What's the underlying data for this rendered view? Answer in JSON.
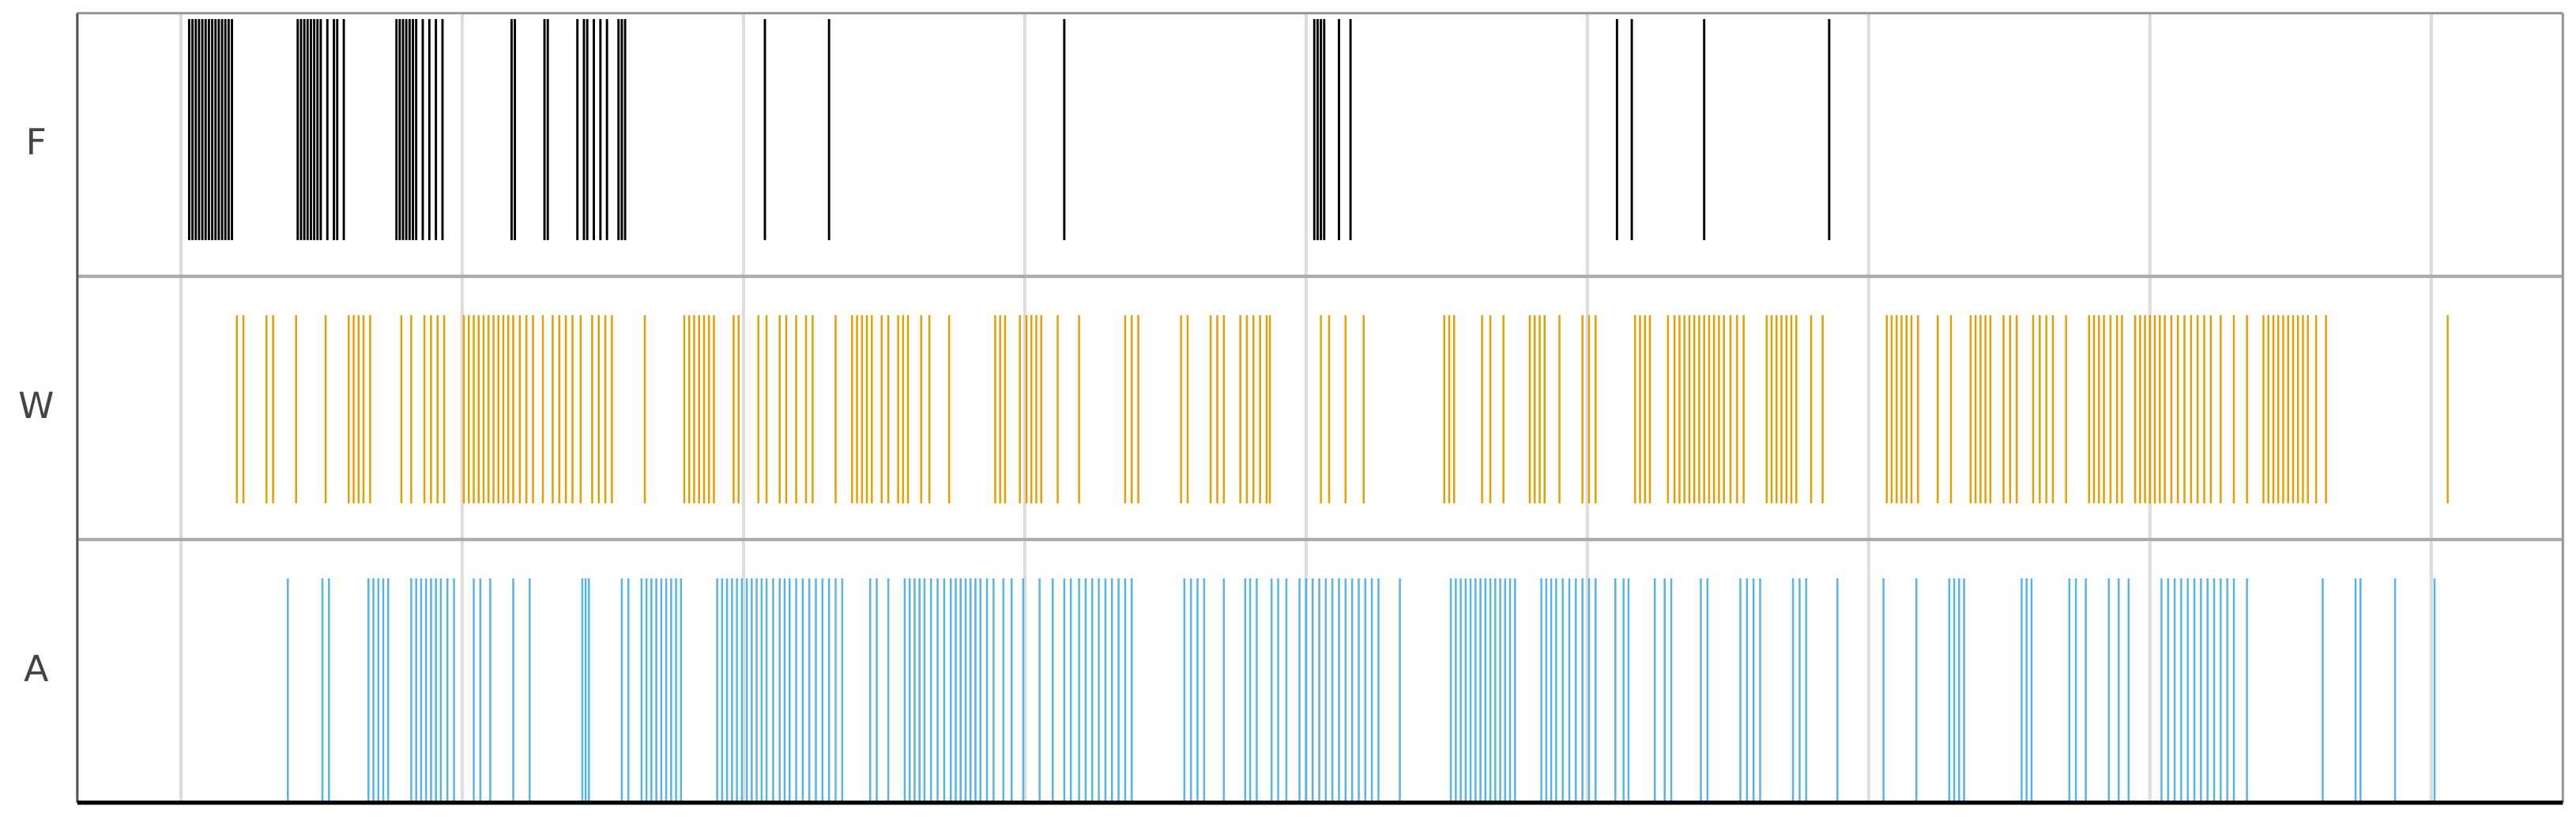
{
  "chart_data": {
    "type": "eventplot",
    "xlim": [
      47,
      1558
    ],
    "xticks": [
      110,
      281,
      452,
      623,
      794,
      965,
      1136,
      1307,
      1478
    ],
    "grid": true,
    "series": [
      {
        "name": "F",
        "color": "#000000",
        "values": [
          115,
          117,
          119,
          121,
          123,
          125,
          127,
          129,
          131,
          133,
          135,
          137,
          139,
          141,
          181,
          183,
          185,
          187,
          189,
          191,
          193,
          195,
          199,
          203,
          205,
          209,
          241,
          243,
          245,
          247,
          249,
          251,
          253,
          257,
          261,
          265,
          269,
          311,
          313,
          331,
          333,
          351,
          355,
          357,
          361,
          365,
          369,
          376,
          378,
          380,
          465,
          504,
          647,
          799,
          801,
          803,
          805,
          814,
          821,
          983,
          992,
          1036,
          1112
        ]
      },
      {
        "name": "W",
        "color": "#e69f00",
        "values": [
          144,
          148,
          162,
          166,
          180,
          198,
          212,
          215,
          218,
          221,
          225,
          244,
          250,
          258,
          262,
          266,
          270,
          282,
          285,
          288,
          291,
          294,
          297,
          300,
          303,
          306,
          309,
          312,
          316,
          320,
          324,
          330,
          336,
          340,
          344,
          348,
          353,
          360,
          364,
          368,
          372,
          392,
          416,
          419,
          422,
          425,
          428,
          431,
          434,
          446,
          449,
          461,
          466,
          474,
          478,
          484,
          490,
          494,
          508,
          518,
          521,
          524,
          527,
          530,
          536,
          540,
          546,
          549,
          552,
          560,
          565,
          577,
          605,
          608,
          611,
          620,
          624,
          627,
          630,
          633,
          643,
          656,
          684,
          688,
          692,
          718,
          722,
          736,
          740,
          744,
          754,
          758,
          762,
          766,
          770,
          772,
          803,
          808,
          818,
          829,
          878,
          881,
          884,
          901,
          906,
          914,
          930,
          933,
          936,
          939,
          948,
          962,
          966,
          970,
          994,
          997,
          1000,
          1003,
          1014,
          1018,
          1021,
          1024,
          1027,
          1030,
          1033,
          1036,
          1039,
          1042,
          1045,
          1048,
          1052,
          1056,
          1060,
          1074,
          1077,
          1080,
          1083,
          1086,
          1089,
          1092,
          1101,
          1108,
          1147,
          1150,
          1153,
          1156,
          1159,
          1162,
          1166,
          1178,
          1186,
          1198,
          1201,
          1204,
          1207,
          1210,
          1218,
          1222,
          1226,
          1236,
          1240,
          1244,
          1248,
          1256,
          1270,
          1273,
          1276,
          1279,
          1283,
          1287,
          1290,
          1298,
          1301,
          1304,
          1307,
          1310,
          1313,
          1316,
          1320,
          1324,
          1328,
          1332,
          1336,
          1340,
          1344,
          1350,
          1358,
          1366,
          1376,
          1379,
          1382,
          1385,
          1388,
          1391,
          1394,
          1397,
          1400,
          1403,
          1408,
          1414,
          1488
        ]
      },
      {
        "name": "A",
        "color": "#56b4e9",
        "values": [
          175,
          196,
          200,
          224,
          227,
          230,
          233,
          236,
          250,
          253,
          256,
          259,
          262,
          265,
          268,
          272,
          276,
          288,
          292,
          298,
          312,
          322,
          354,
          356,
          358,
          378,
          382,
          390,
          393,
          396,
          399,
          402,
          405,
          408,
          411,
          414,
          436,
          439,
          442,
          445,
          448,
          451,
          454,
          457,
          460,
          463,
          466,
          470,
          474,
          477,
          480,
          484,
          488,
          492,
          496,
          500,
          504,
          508,
          512,
          529,
          533,
          540,
          550,
          553,
          556,
          559,
          562,
          566,
          570,
          574,
          578,
          581,
          584,
          587,
          590,
          593,
          596,
          600,
          604,
          610,
          615,
          622,
          632,
          640,
          647,
          651,
          656,
          660,
          664,
          668,
          672,
          676,
          680,
          684,
          688,
          720,
          724,
          728,
          732,
          744,
          757,
          760,
          764,
          773,
          777,
          782,
          790,
          794,
          798,
          802,
          806,
          810,
          814,
          818,
          822,
          826,
          830,
          834,
          838,
          851,
          882,
          885,
          888,
          891,
          894,
          897,
          900,
          903,
          906,
          909,
          912,
          915,
          918,
          921,
          937,
          940,
          943,
          946,
          950,
          954,
          958,
          962,
          966,
          970,
          982,
          987,
          990,
          1006,
          1012,
          1016,
          1034,
          1038,
          1058,
          1062,
          1066,
          1070,
          1090,
          1094,
          1098,
          1117,
          1145,
          1165,
          1185,
          1188,
          1191,
          1194,
          1229,
          1232,
          1235,
          1258,
          1262,
          1268,
          1282,
          1288,
          1294,
          1314,
          1318,
          1322,
          1326,
          1330,
          1334,
          1338,
          1342,
          1346,
          1350,
          1354,
          1358,
          1366,
          1412,
          1432,
          1435,
          1456,
          1480
        ]
      }
    ]
  }
}
